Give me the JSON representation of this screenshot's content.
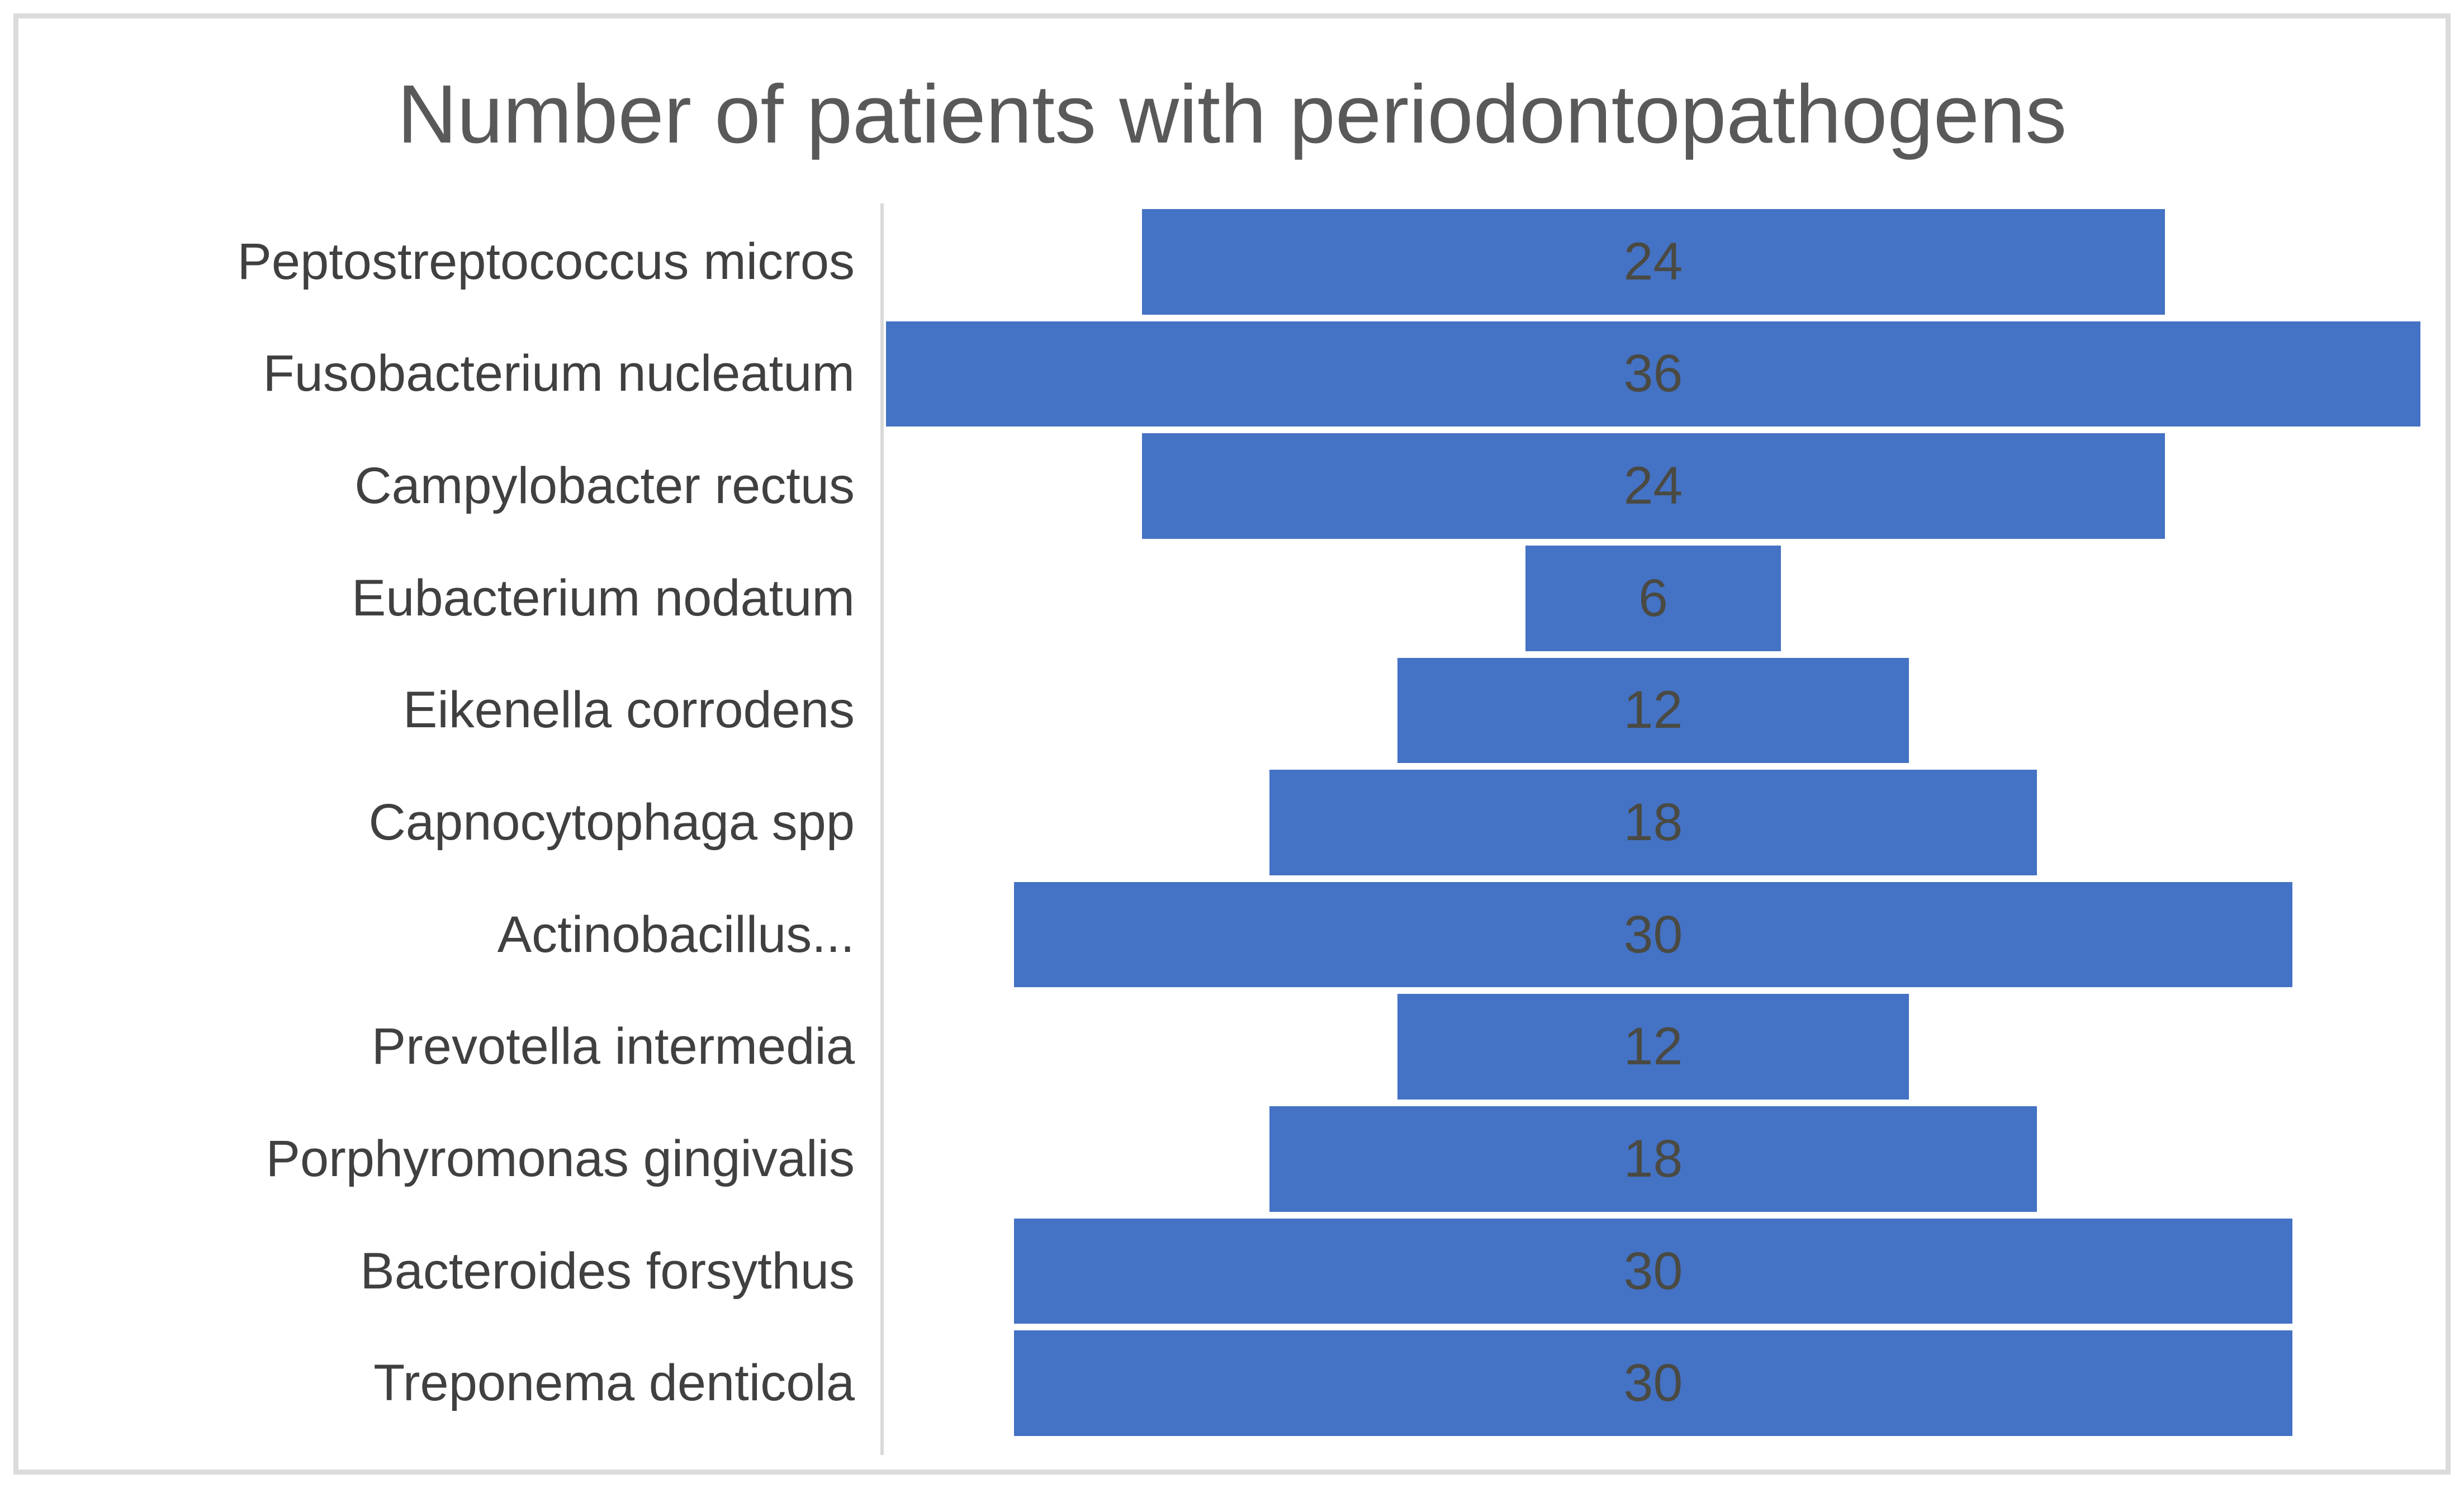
{
  "chart_data": {
    "type": "bar",
    "subtype": "horizontal-centered-funnel",
    "title": "Number of patients with periodontopathogens",
    "categories": [
      "Peptostreptococcus micros",
      "Fusobacterium nucleatum",
      "Campylobacter rectus",
      "Eubacterium nodatum",
      "Eikenella corrodens",
      "Capnocytophaga spp",
      "Actinobacillus...",
      "Prevotella intermedia",
      "Porphyromonas gingivalis",
      "Bacteroides forsythus",
      "Treponema denticola"
    ],
    "values": [
      24,
      36,
      24,
      6,
      12,
      18,
      30,
      12,
      18,
      30,
      30
    ],
    "value_scale_max": 36,
    "xlabel": "",
    "ylabel": "",
    "legend": false,
    "grid": false,
    "layout_hints": {
      "bars_centered_on_common_axis": true,
      "value_labels": "inside-center",
      "category_axis_line": "vertical-left-of-bars",
      "outer_frame": true
    },
    "colors": {
      "bar": "#4472C4",
      "title": "#595959",
      "category_label": "#404040",
      "value_label": "#4A4A43",
      "axis_line": "#D9D9D9",
      "frame": "#DBDBDB",
      "background": "#FFFFFF"
    }
  }
}
